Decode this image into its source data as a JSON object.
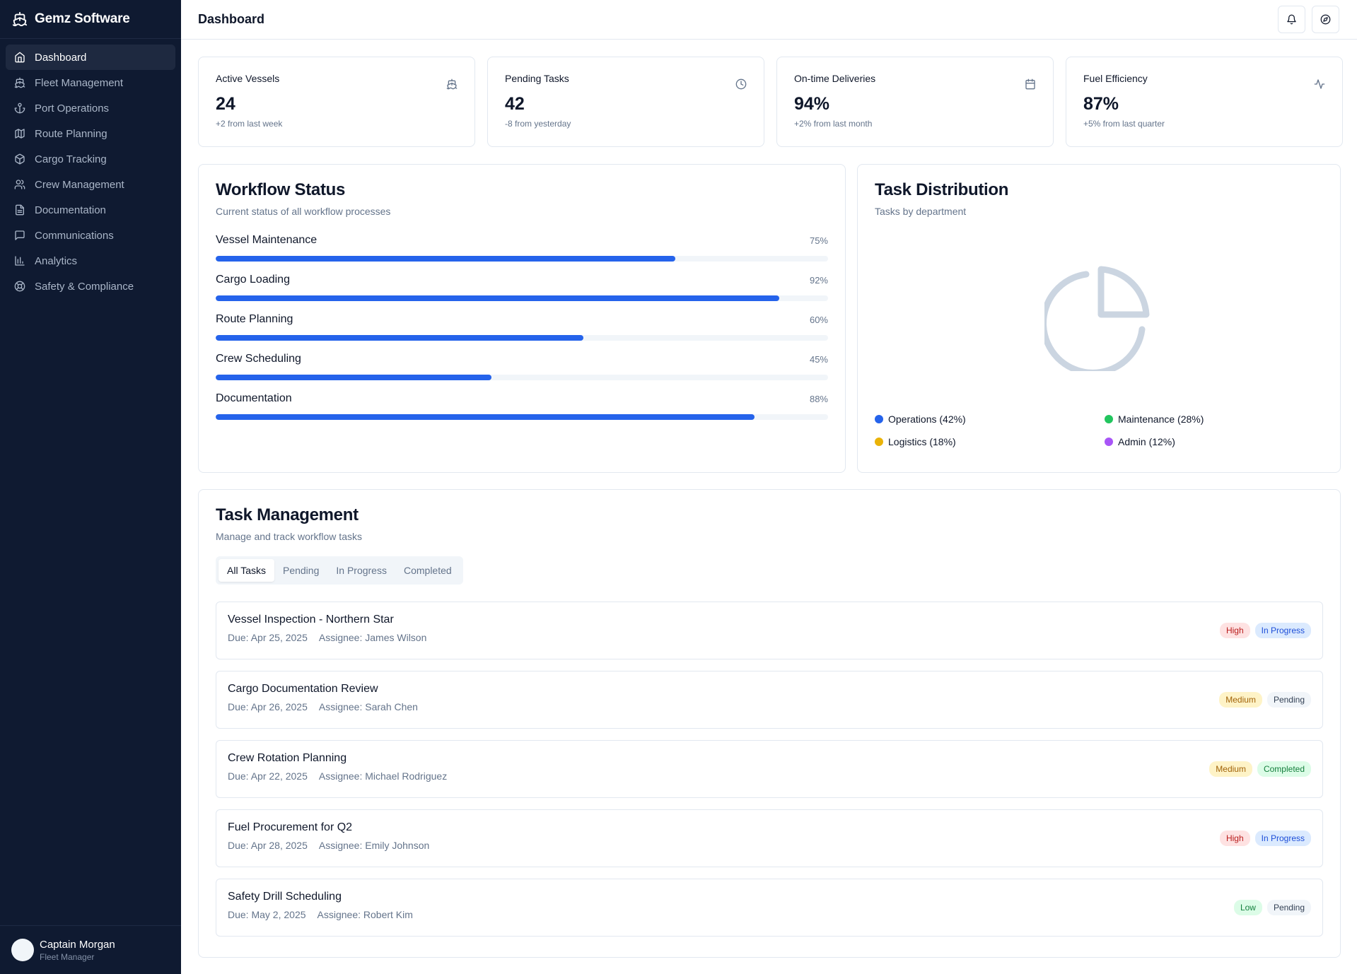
{
  "brand": {
    "name": "Gemz Software"
  },
  "sidebar": {
    "items": [
      {
        "label": "Dashboard",
        "icon": "home-icon",
        "active": true
      },
      {
        "label": "Fleet Management",
        "icon": "ship-icon"
      },
      {
        "label": "Port Operations",
        "icon": "anchor-icon"
      },
      {
        "label": "Route Planning",
        "icon": "map-icon"
      },
      {
        "label": "Cargo Tracking",
        "icon": "package-icon"
      },
      {
        "label": "Crew Management",
        "icon": "users-icon"
      },
      {
        "label": "Documentation",
        "icon": "file-icon"
      },
      {
        "label": "Communications",
        "icon": "message-icon"
      },
      {
        "label": "Analytics",
        "icon": "bar-chart-icon"
      },
      {
        "label": "Safety & Compliance",
        "icon": "lifebuoy-icon"
      }
    ],
    "user": {
      "name": "Captain Morgan",
      "role": "Fleet Manager"
    }
  },
  "header": {
    "title": "Dashboard"
  },
  "stats": [
    {
      "label": "Active Vessels",
      "value": "24",
      "sub": "+2 from last week",
      "icon": "ship-icon"
    },
    {
      "label": "Pending Tasks",
      "value": "42",
      "sub": "-8 from yesterday",
      "icon": "clock-icon"
    },
    {
      "label": "On-time Deliveries",
      "value": "94%",
      "sub": "+2% from last month",
      "icon": "calendar-icon"
    },
    {
      "label": "Fuel Efficiency",
      "value": "87%",
      "sub": "+5% from last quarter",
      "icon": "activity-icon"
    }
  ],
  "workflow": {
    "title": "Workflow Status",
    "subtitle": "Current status of all workflow processes",
    "items": [
      {
        "name": "Vessel Maintenance",
        "percent_label": "75%",
        "progress": 75
      },
      {
        "name": "Cargo Loading",
        "percent_label": "92%",
        "progress": 92
      },
      {
        "name": "Route Planning",
        "percent_label": "60%",
        "progress": 60
      },
      {
        "name": "Crew Scheduling",
        "percent_label": "45%",
        "progress": 45
      },
      {
        "name": "Documentation",
        "percent_label": "88%",
        "progress": 88
      }
    ]
  },
  "distribution": {
    "title": "Task Distribution",
    "subtitle": "Tasks by department",
    "icon": "pie-chart-icon",
    "legend": [
      {
        "label": "Operations (42%)",
        "color": "#2563eb"
      },
      {
        "label": "Maintenance (28%)",
        "color": "#22c55e"
      },
      {
        "label": "Logistics (18%)",
        "color": "#eab308"
      },
      {
        "label": "Admin (12%)",
        "color": "#a855f7"
      }
    ]
  },
  "tasks": {
    "title": "Task Management",
    "subtitle": "Manage and track workflow tasks",
    "tabs": [
      "All Tasks",
      "Pending",
      "In Progress",
      "Completed"
    ],
    "items": [
      {
        "title": "Vessel Inspection - Northern Star",
        "due": "Due: Apr 25, 2025",
        "assignee": "Assignee: James Wilson",
        "priority": "High",
        "status": "In Progress"
      },
      {
        "title": "Cargo Documentation Review",
        "due": "Due: Apr 26, 2025",
        "assignee": "Assignee: Sarah Chen",
        "priority": "Medium",
        "status": "Pending"
      },
      {
        "title": "Crew Rotation Planning",
        "due": "Due: Apr 22, 2025",
        "assignee": "Assignee: Michael Rodriguez",
        "priority": "Medium",
        "status": "Completed"
      },
      {
        "title": "Fuel Procurement for Q2",
        "due": "Due: Apr 28, 2025",
        "assignee": "Assignee: Emily Johnson",
        "priority": "High",
        "status": "In Progress"
      },
      {
        "title": "Safety Drill Scheduling",
        "due": "Due: May 2, 2025",
        "assignee": "Assignee: Robert Kim",
        "priority": "Low",
        "status": "Pending"
      }
    ]
  }
}
